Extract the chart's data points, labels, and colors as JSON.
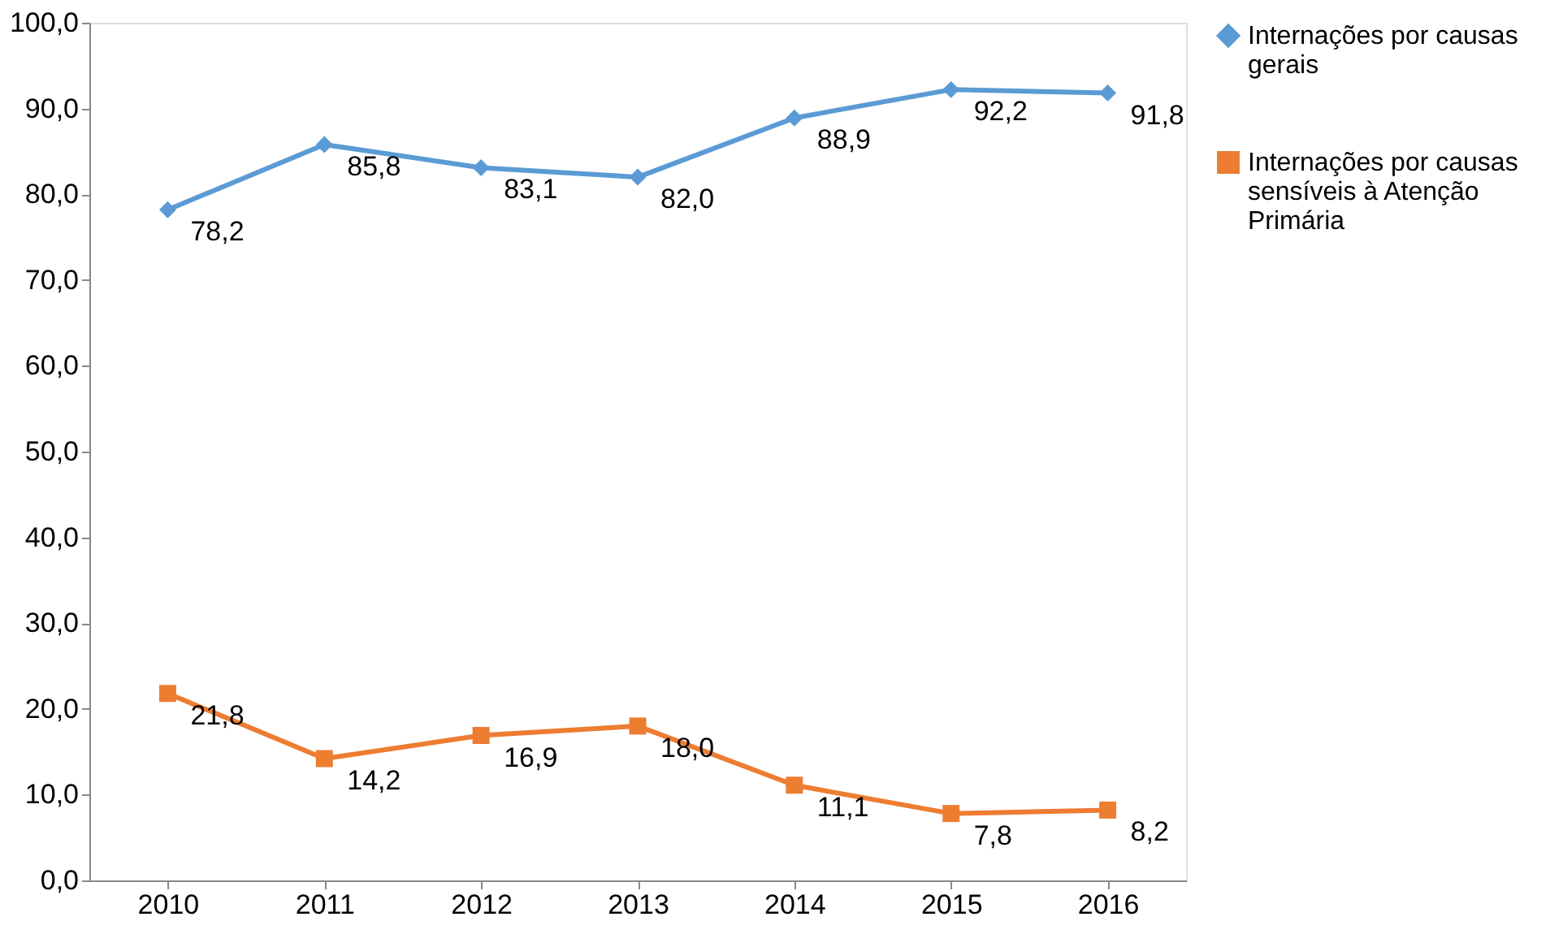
{
  "chart_data": {
    "type": "line",
    "categories": [
      "2010",
      "2011",
      "2012",
      "2013",
      "2014",
      "2015",
      "2016"
    ],
    "series": [
      {
        "name": "Internações por causas gerais",
        "color": "#5b9bd5",
        "marker": "diamond",
        "values": [
          78.2,
          85.8,
          83.1,
          82.0,
          88.9,
          92.2,
          91.8
        ],
        "value_labels": [
          "78,2",
          "85,8",
          "83,1",
          "82,0",
          "88,9",
          "92,2",
          "91,8"
        ]
      },
      {
        "name": "Internações por causas sensíveis à Atenção Primária",
        "color": "#ed7d31",
        "marker": "square",
        "values": [
          21.8,
          14.2,
          16.9,
          18.0,
          11.1,
          7.8,
          8.2
        ],
        "value_labels": [
          "21,8",
          "14,2",
          "16,9",
          "18,0",
          "11,1",
          "7,8",
          "8,2"
        ]
      }
    ],
    "ylim": [
      0,
      100
    ],
    "yticks": [
      {
        "value": 0,
        "label": "0,0"
      },
      {
        "value": 10,
        "label": "10,0"
      },
      {
        "value": 20,
        "label": "20,0"
      },
      {
        "value": 30,
        "label": "30,0"
      },
      {
        "value": 40,
        "label": "40,0"
      },
      {
        "value": 50,
        "label": "50,0"
      },
      {
        "value": 60,
        "label": "60,0"
      },
      {
        "value": 70,
        "label": "70,0"
      },
      {
        "value": 80,
        "label": "80,0"
      },
      {
        "value": 90,
        "label": "90,0"
      },
      {
        "value": 100,
        "label": "100,0"
      }
    ],
    "grid": false,
    "legend": "right",
    "line_style": "solid"
  }
}
